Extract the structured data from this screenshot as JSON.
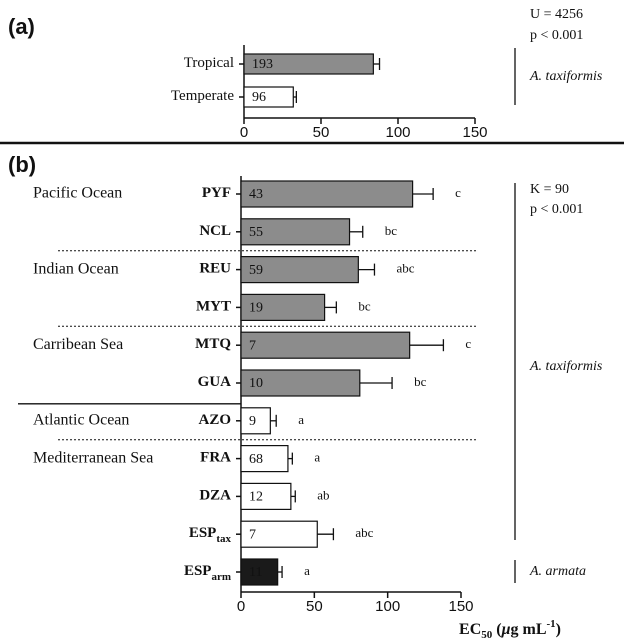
{
  "chart_data": [
    {
      "type": "bar",
      "orientation": "horizontal",
      "panel_label": "(a)",
      "categories": [
        "Tropical",
        "Temperate"
      ],
      "values": [
        84,
        32
      ],
      "errors": [
        4,
        2
      ],
      "n": [
        193,
        96
      ],
      "colors": [
        "#8c8c8c",
        "#ffffff"
      ],
      "xlim": [
        0,
        150
      ],
      "xticks": [
        0,
        50,
        100,
        150
      ],
      "stats": [
        "U = 4256",
        "p < 0.001"
      ],
      "species": [
        "A. taxiformis"
      ]
    },
    {
      "type": "bar",
      "orientation": "horizontal",
      "panel_label": "(b)",
      "categories": [
        "PYF",
        "NCL",
        "REU",
        "MYT",
        "MTQ",
        "GUA",
        "AZO",
        "FRA",
        "DZA",
        "ESP",
        "ESP"
      ],
      "category_subscripts": [
        null,
        null,
        null,
        null,
        null,
        null,
        null,
        null,
        null,
        "tax",
        "arm"
      ],
      "groups": [
        "Pacific Ocean",
        "Indian Ocean",
        "Carribean Sea",
        "Atlantic Ocean",
        "Mediterranean Sea"
      ],
      "values": [
        117,
        74,
        80,
        57,
        115,
        81,
        20,
        32,
        34,
        52,
        25
      ],
      "errors": [
        14,
        9,
        11,
        8,
        23,
        22,
        4,
        3,
        3,
        11,
        3
      ],
      "n": [
        43,
        55,
        59,
        19,
        7,
        10,
        9,
        68,
        12,
        7,
        11
      ],
      "letters": [
        "c",
        "bc",
        "abc",
        "bc",
        "c",
        "bc",
        "a",
        "a",
        "ab",
        "abc",
        "a"
      ],
      "colors": [
        "#8c8c8c",
        "#8c8c8c",
        "#8c8c8c",
        "#8c8c8c",
        "#8c8c8c",
        "#8c8c8c",
        "#ffffff",
        "#ffffff",
        "#ffffff",
        "#ffffff",
        "#1a1a1a"
      ],
      "xlim": [
        0,
        150
      ],
      "xticks": [
        0,
        50,
        100,
        150
      ],
      "x_label": {
        "main": "EC",
        "sub": "50",
        "open": " (",
        "mu": "μ",
        "unit": "g mL",
        "sup": "-1",
        "close": ")"
      },
      "stats": [
        "K = 90",
        "p < 0.001"
      ],
      "species": [
        "A. taxiformis",
        "A. armata"
      ]
    }
  ]
}
